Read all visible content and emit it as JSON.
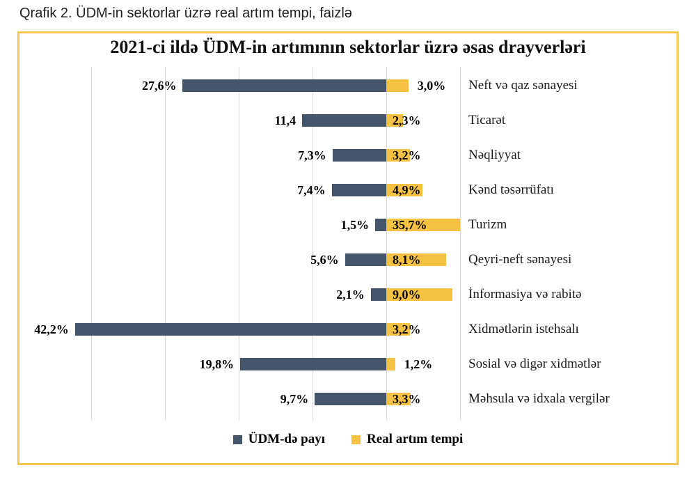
{
  "page": {
    "title": "Qrafik 2. ÜDM-in sektorlar üzrə real artım tempi, faizlə"
  },
  "chart": {
    "title": "2021-ci ildə ÜDM-in artımının sektorlar üzrə əsas drayverləri",
    "legend": {
      "share_label": "ÜDM-də payı",
      "growth_label": "Real artım tempi"
    }
  },
  "colors": {
    "share_bar": "#44546A",
    "growth_bar": "#F5C142",
    "box_border": "#F8C755",
    "gridline": "#D9D9D9"
  },
  "chart_data": {
    "type": "bar",
    "orientation": "horizontal-diverging",
    "title": "2021-ci ildə ÜDM-in artımının sektorlar üzrə əsas drayverləri",
    "legend_position": "bottom",
    "grid": "vertical",
    "axis": {
      "min": -50,
      "max": 10,
      "gridline_values": [
        -40,
        -30,
        -20,
        -10,
        0,
        10
      ],
      "note": "share series plotted leftward as negative, growth rightward as positive; growth bars clipped at axis max 10"
    },
    "categories": [
      "Neft və qaz sənayesi",
      "Ticarət",
      "Nəqliyyat",
      "Kənd təsərrüfatı",
      "Turizm",
      "Qeyri-neft sənayesi",
      "İnformasiya və rabitə",
      "Xidmətlərin istehsalı",
      "Sosial və digər xidmətlər",
      "Məhsula və idxala vergilər"
    ],
    "series": [
      {
        "name": "ÜDM-də payı",
        "color": "#44546A",
        "direction": "left",
        "values": [
          27.6,
          11.4,
          7.3,
          7.4,
          1.5,
          5.6,
          2.1,
          42.2,
          19.8,
          9.7
        ],
        "labels": [
          "27,6%",
          "11,4",
          "7,3%",
          "7,4%",
          "1,5%",
          "5,6%",
          "2,1%",
          "42,2%",
          "19,8%",
          "9,7%"
        ]
      },
      {
        "name": "Real artım tempi",
        "color": "#F5C142",
        "direction": "right",
        "values": [
          3.0,
          2.3,
          3.2,
          4.9,
          35.7,
          8.1,
          9.0,
          3.2,
          1.2,
          3.3
        ],
        "labels": [
          "3,0%",
          "2,3%",
          "3,2%",
          "4,9%",
          "35,7%",
          "8,1%",
          "9,0%",
          "3,2%",
          "1,2%",
          "3,3%"
        ],
        "label_pos": [
          "after_bar",
          "axis",
          "axis",
          "axis",
          "axis",
          "axis",
          "axis",
          "axis",
          "after_bar",
          "axis"
        ]
      }
    ]
  }
}
